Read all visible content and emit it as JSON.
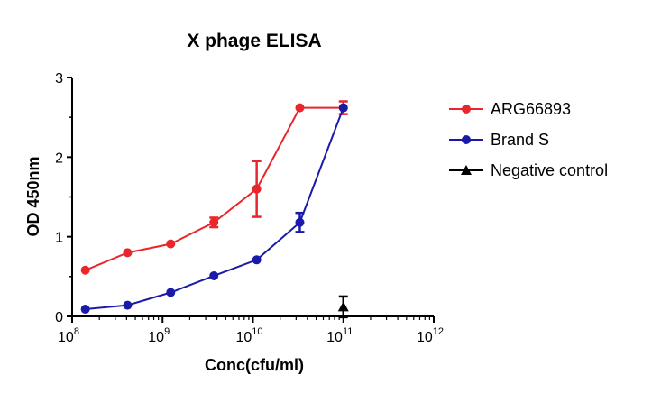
{
  "chart_data": {
    "type": "line",
    "title": "X phage ELISA",
    "xlabel": "Conc(cfu/ml)",
    "ylabel": "OD 450nm",
    "x_scale": "log10",
    "xlim": [
      100000000.0,
      1000000000000.0
    ],
    "ylim": [
      0,
      3
    ],
    "x_ticks": [
      {
        "base": "10",
        "exp": "8",
        "value": 100000000.0
      },
      {
        "base": "10",
        "exp": "9",
        "value": 1000000000.0
      },
      {
        "base": "10",
        "exp": "10",
        "value": 10000000000.0
      },
      {
        "base": "10",
        "exp": "11",
        "value": 100000000000.0
      },
      {
        "base": "10",
        "exp": "12",
        "value": 1000000000000.0
      }
    ],
    "y_ticks": [
      "0",
      "1",
      "2",
      "3"
    ],
    "legend_position": "right",
    "grid": false,
    "series": [
      {
        "name": "ARG66893",
        "color": "#e8262b",
        "marker": "circle",
        "x": [
          140000000.0,
          410000000.0,
          1230000000.0,
          3700000000.0,
          11000000000.0,
          33000000000.0,
          100000000000.0
        ],
        "y": [
          0.58,
          0.8,
          0.91,
          1.18,
          1.6,
          2.62,
          2.62
        ],
        "err": [
          0,
          0,
          0,
          0.06,
          0.35,
          0,
          0.08
        ]
      },
      {
        "name": "Brand S",
        "color": "#1a1aaa",
        "marker": "circle",
        "x": [
          140000000.0,
          410000000.0,
          1230000000.0,
          3700000000.0,
          11000000000.0,
          33000000000.0,
          100000000000.0
        ],
        "y": [
          0.09,
          0.14,
          0.3,
          0.51,
          0.71,
          1.18,
          2.62
        ],
        "err": [
          0,
          0,
          0,
          0,
          0,
          0.12,
          0
        ]
      },
      {
        "name": "Negative control",
        "color": "#000000",
        "marker": "triangle",
        "x": [
          100000000000.0
        ],
        "y": [
          0.12
        ],
        "err": [
          0.13
        ]
      }
    ]
  }
}
